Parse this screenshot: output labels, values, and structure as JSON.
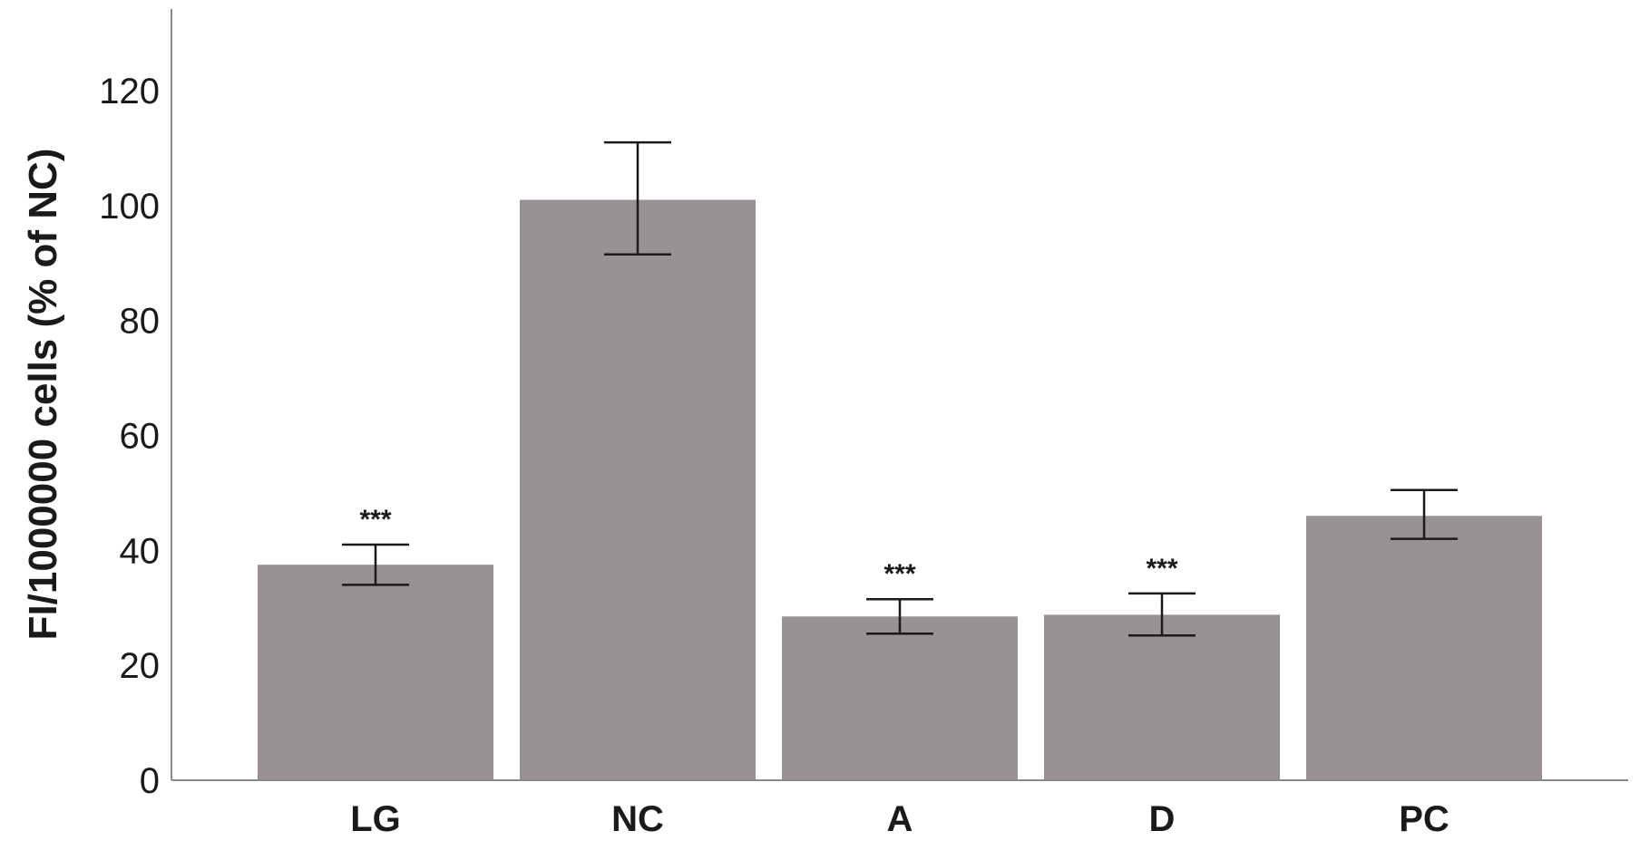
{
  "chart_data": {
    "type": "bar",
    "title": "",
    "xlabel": "",
    "ylabel": "FI/1000000 cells (% of NC)",
    "ylim": [
      0,
      133
    ],
    "yticks": [
      0,
      20,
      40,
      60,
      80,
      100,
      120
    ],
    "grid": false,
    "legend": "none",
    "bar_color": "#989292",
    "categories": [
      "LG",
      "NC",
      "A",
      "D",
      "PC"
    ],
    "values": [
      37.5,
      101,
      28.5,
      28.8,
      46
    ],
    "error_low": [
      34,
      91.5,
      25.5,
      25.2,
      42
    ],
    "error_high": [
      41,
      111,
      31.5,
      32.5,
      50.5
    ],
    "annotations": [
      "***",
      "",
      "***",
      "***",
      ""
    ]
  }
}
